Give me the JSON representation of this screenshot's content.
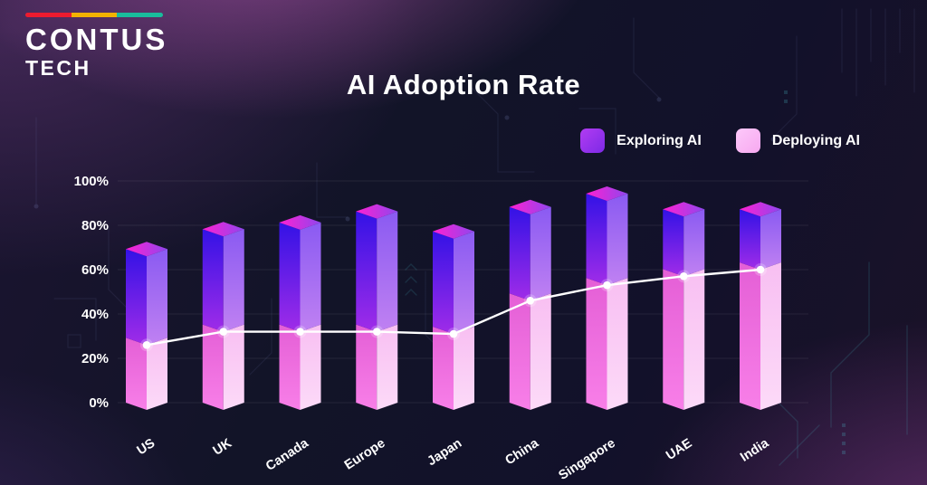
{
  "logo": {
    "text_primary": "CONTUS",
    "text_secondary": "TECH",
    "bar_colors": [
      "#ed1b2f",
      "#f2b200",
      "#19bc9c"
    ]
  },
  "header": {
    "title": "AI Adoption Rate"
  },
  "legend": {
    "items": [
      {
        "label": "Exploring AI",
        "color_start": "#b13cf2",
        "color_end": "#7d2ae6"
      },
      {
        "label": "Deploying AI",
        "color_start": "#fdc9fa",
        "color_end": "#f7a8f0"
      }
    ]
  },
  "chart_data": {
    "type": "bar",
    "variant": "3d-stacked-columns-with-trend-line",
    "title": "AI Adoption Rate",
    "categories": [
      "US",
      "UK",
      "Canada",
      "Europe",
      "Japan",
      "China",
      "Singapore",
      "UAE",
      "India"
    ],
    "series": [
      {
        "name": "Deploying AI",
        "values": [
          26,
          32,
          32,
          32,
          31,
          46,
          53,
          57,
          60
        ]
      },
      {
        "name": "Exploring AI",
        "values": [
          40,
          43,
          46,
          51,
          43,
          39,
          38,
          27,
          24
        ]
      }
    ],
    "totals": [
      66,
      75,
      78,
      83,
      74,
      85,
      91,
      84,
      84
    ],
    "line": {
      "name": "Deploying AI trend",
      "values": [
        26,
        32,
        32,
        32,
        31,
        46,
        53,
        57,
        60
      ],
      "color": "#ffffff"
    },
    "xlabel": "",
    "ylabel": "",
    "ylim": [
      0,
      100
    ],
    "yticks": [
      {
        "label": "100%",
        "value": 100
      },
      {
        "label": "80%",
        "value": 80
      },
      {
        "label": "60%",
        "value": 60
      },
      {
        "label": "40%",
        "value": 40
      },
      {
        "label": "20%",
        "value": 20
      },
      {
        "label": "0%",
        "value": 0
      }
    ],
    "grid": "horizontal",
    "legend_position": "top-right",
    "colors": {
      "exploring_left": [
        "#3312e6",
        "#a02ce8"
      ],
      "exploring_right": [
        "#8a5af2",
        "#c081f2"
      ],
      "top_face": [
        "#ff20d2",
        "#8f46ee"
      ],
      "deploying_left": [
        "#e45fd6",
        "#f87fe8"
      ],
      "deploying_right": [
        "#f8bff2",
        "#fcdaf8"
      ],
      "line": "#ffffff",
      "grid": "rgba(255,255,255,0.08)",
      "axis_text": "#ffffff"
    }
  }
}
